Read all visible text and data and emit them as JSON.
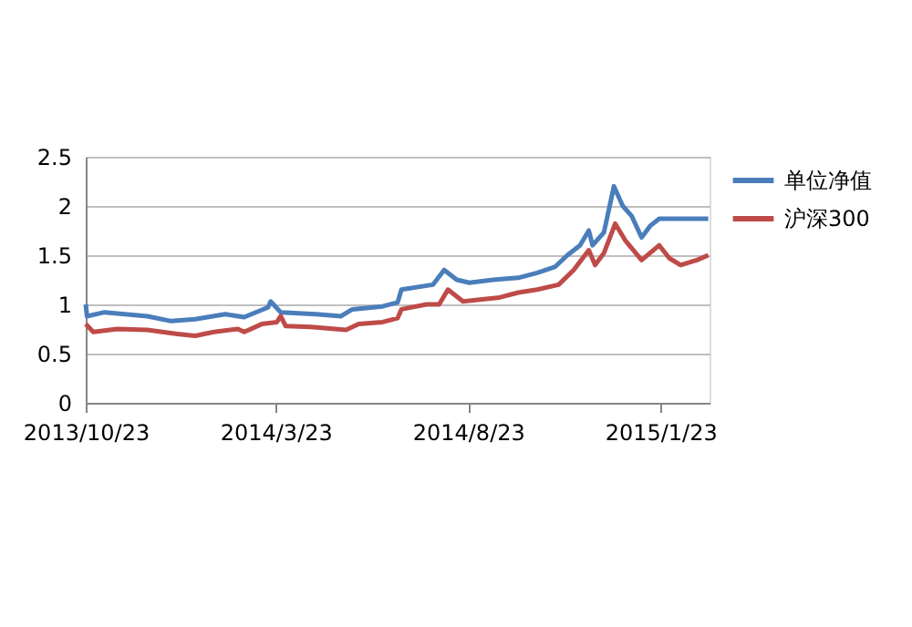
{
  "chart_data": {
    "type": "line",
    "xlim": [
      "2013-10-23",
      "2015-03-03"
    ],
    "xticks": [
      {
        "value": "2013-10-23",
        "label": "2013/10/23"
      },
      {
        "value": "2014-03-23",
        "label": "2014/3/23"
      },
      {
        "value": "2014-08-23",
        "label": "2014/8/23"
      },
      {
        "value": "2015-01-23",
        "label": "2015/1/23"
      }
    ],
    "ylim": [
      0,
      2.5
    ],
    "yticks": [
      0,
      0.5,
      1,
      1.5,
      2,
      2.5
    ],
    "grid": "y",
    "legend": "right",
    "line_style": "solid",
    "marker": "none",
    "series": [
      {
        "name": "单位净值",
        "color": "#4a7ebb",
        "x": [
          "2013-10-23",
          "2013-10-24",
          "2013-11-07",
          "2013-12-11",
          "2013-12-30",
          "2014-01-18",
          "2014-02-11",
          "2014-02-26",
          "2014-03-17",
          "2014-03-19",
          "2014-03-27",
          "2014-04-24",
          "2014-05-14",
          "2014-05-23",
          "2014-06-16",
          "2014-06-28",
          "2014-07-01",
          "2014-07-26",
          "2014-08-04",
          "2014-08-14",
          "2014-08-24",
          "2014-09-12",
          "2014-10-02",
          "2014-10-17",
          "2014-10-31",
          "2014-11-10",
          "2014-11-20",
          "2014-11-27",
          "2014-11-30",
          "2014-12-09",
          "2014-12-17",
          "2014-12-24",
          "2014-12-31",
          "2015-01-08",
          "2015-01-15",
          "2015-01-22",
          "2015-03-02"
        ],
        "values": [
          1.0,
          0.88,
          0.92,
          0.88,
          0.83,
          0.85,
          0.9,
          0.87,
          0.97,
          1.03,
          0.92,
          0.9,
          0.88,
          0.95,
          0.98,
          1.02,
          1.15,
          1.2,
          1.35,
          1.25,
          1.22,
          1.25,
          1.27,
          1.32,
          1.38,
          1.5,
          1.6,
          1.75,
          1.6,
          1.73,
          2.2,
          2.0,
          1.9,
          1.68,
          1.8,
          1.87,
          1.87
        ]
      },
      {
        "name": "沪深300",
        "color": "#be4b48",
        "x": [
          "2013-10-23",
          "2013-10-29",
          "2013-11-17",
          "2013-12-11",
          "2014-01-04",
          "2014-01-18",
          "2014-02-02",
          "2014-02-21",
          "2014-02-26",
          "2014-03-12",
          "2014-03-24",
          "2014-03-27",
          "2014-03-31",
          "2014-04-20",
          "2014-05-18",
          "2014-05-28",
          "2014-06-16",
          "2014-06-28",
          "2014-07-01",
          "2014-07-21",
          "2014-07-31",
          "2014-08-07",
          "2014-08-19",
          "2014-09-03",
          "2014-09-17",
          "2014-10-02",
          "2014-10-17",
          "2014-11-03",
          "2014-11-15",
          "2014-11-27",
          "2014-12-02",
          "2014-12-09",
          "2014-12-18",
          "2014-12-26",
          "2015-01-08",
          "2015-01-22",
          "2015-01-30",
          "2015-02-08",
          "2015-02-21",
          "2015-03-02"
        ],
        "values": [
          0.8,
          0.72,
          0.75,
          0.74,
          0.7,
          0.68,
          0.72,
          0.75,
          0.72,
          0.8,
          0.82,
          0.88,
          0.78,
          0.77,
          0.74,
          0.8,
          0.82,
          0.86,
          0.95,
          1.0,
          1.0,
          1.15,
          1.03,
          1.05,
          1.07,
          1.12,
          1.15,
          1.2,
          1.35,
          1.55,
          1.4,
          1.52,
          1.82,
          1.65,
          1.45,
          1.6,
          1.47,
          1.4,
          1.45,
          1.5
        ]
      }
    ]
  }
}
